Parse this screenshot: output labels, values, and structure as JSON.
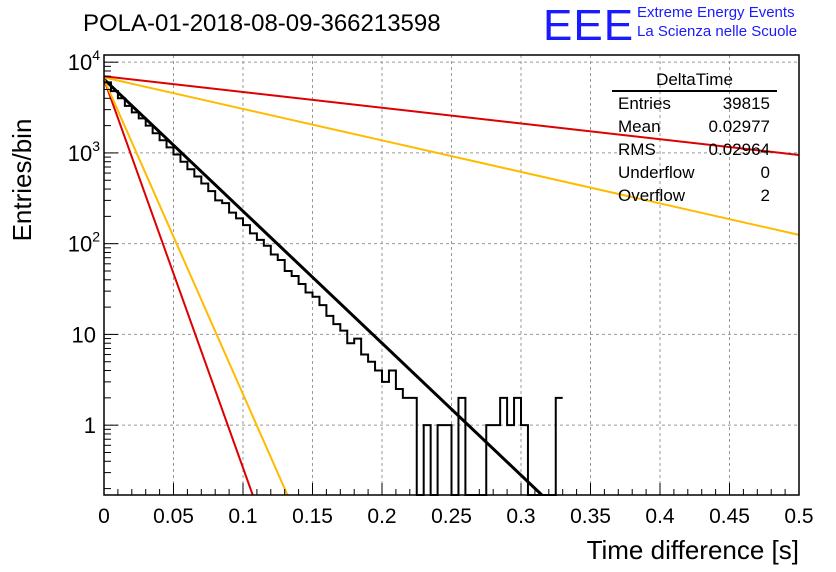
{
  "title": "POLA-01-2018-08-09-366213598",
  "logo": {
    "mark": "EEE",
    "line1": "Extreme Energy Events",
    "line2": "La Scienza nelle Scuole",
    "color": "#1a1aff"
  },
  "stats": {
    "title": "DeltaTime",
    "rows": [
      {
        "label": "Entries",
        "value": "39815"
      },
      {
        "label": "Mean",
        "value": "0.02977"
      },
      {
        "label": "RMS",
        "value": "0.02964"
      },
      {
        "label": "Underflow",
        "value": "0"
      },
      {
        "label": "Overflow",
        "value": "2"
      }
    ]
  },
  "chart_data": {
    "type": "histogram",
    "xlabel": "Time difference [s]",
    "ylabel": "Entries/bin",
    "xlim": [
      0,
      0.5
    ],
    "ylim": [
      0.17,
      12000
    ],
    "yscale": "log",
    "grid": true,
    "xticks": [
      0,
      0.05,
      0.1,
      0.15,
      0.2,
      0.25,
      0.3,
      0.35,
      0.4,
      0.45,
      0.5
    ],
    "xtick_labels": [
      "0",
      "0.05",
      "0.1",
      "0.15",
      "0.2",
      "0.25",
      "0.3",
      "0.35",
      "0.4",
      "0.45",
      "0.5"
    ],
    "yticks": [
      1,
      10,
      100,
      1000,
      10000
    ],
    "ytick_labels": [
      {
        "base": "1",
        "exp": ""
      },
      {
        "base": "10",
        "exp": ""
      },
      {
        "base": "10",
        "exp": "2"
      },
      {
        "base": "10",
        "exp": "3"
      },
      {
        "base": "10",
        "exp": "4"
      }
    ],
    "histogram": {
      "bin_width": 0.005,
      "color": "#000000",
      "start": 0,
      "counts": [
        6000,
        4800,
        4000,
        3300,
        2800,
        2400,
        2000,
        1650,
        1380,
        1150,
        960,
        800,
        660,
        550,
        460,
        380,
        300,
        280,
        220,
        190,
        160,
        130,
        110,
        95,
        76,
        66,
        50,
        44,
        36,
        29,
        26,
        21,
        16,
        13,
        11,
        8,
        9,
        6,
        5,
        4,
        3,
        4,
        2.5,
        2,
        2,
        0.15,
        1,
        0.15,
        1,
        1,
        0.15,
        2,
        0.15,
        0.15,
        0.15,
        1,
        1,
        2,
        1,
        2,
        1,
        0.15,
        0.15,
        0.15,
        0.15,
        2
      ]
    },
    "fits": [
      {
        "color": "#000000",
        "width": 3,
        "points": [
          [
            0,
            6500
          ],
          [
            0.315,
            0.17
          ]
        ]
      },
      {
        "color": "#dd0000",
        "width": 2,
        "points": [
          [
            0,
            6500
          ],
          [
            0.107,
            0.17
          ]
        ]
      },
      {
        "color": "#ffbb00",
        "width": 2,
        "points": [
          [
            0,
            6500
          ],
          [
            0.132,
            0.17
          ]
        ]
      },
      {
        "color": "#ffbb00",
        "width": 2,
        "points": [
          [
            0,
            6800
          ],
          [
            0.5,
            125
          ]
        ]
      },
      {
        "color": "#dd0000",
        "width": 2,
        "points": [
          [
            0,
            7000
          ],
          [
            0.5,
            950
          ]
        ]
      }
    ]
  }
}
